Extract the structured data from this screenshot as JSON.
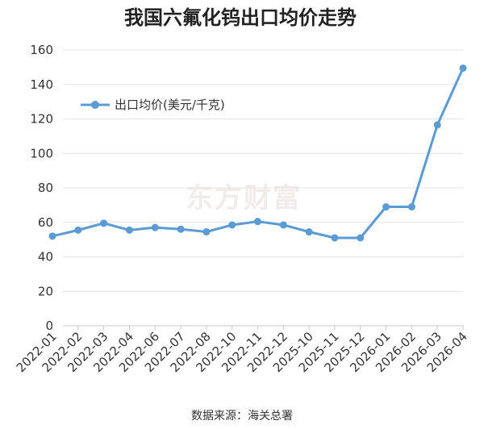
{
  "chart_data": {
    "type": "line",
    "title": "我国六氟化钨出口均价走势",
    "categories": [
      "2022-01",
      "2022-02",
      "2022-03",
      "2022-04",
      "2022-06",
      "2022-07",
      "2022-08",
      "2022-10",
      "2022-11",
      "2022-12",
      "2025-10",
      "2025-11",
      "2025-12",
      "2026-01",
      "2026-02",
      "2026-03",
      "2026-04"
    ],
    "series": [
      {
        "name": "出口均价(美元/千克)",
        "color": "#5b9bd5",
        "values": [
          52,
          55.5,
          59.5,
          55.5,
          57,
          56,
          54.5,
          58.5,
          60.5,
          58.5,
          54.5,
          51,
          51,
          69,
          69,
          116.5,
          149.5
        ]
      }
    ],
    "ylim": [
      0,
      160
    ],
    "yticks": [
      0,
      20,
      40,
      60,
      80,
      100,
      120,
      140,
      160
    ],
    "grid": true,
    "legend_position": "top-left",
    "watermark": "东方财富",
    "source": "数据来源：海关总署"
  }
}
